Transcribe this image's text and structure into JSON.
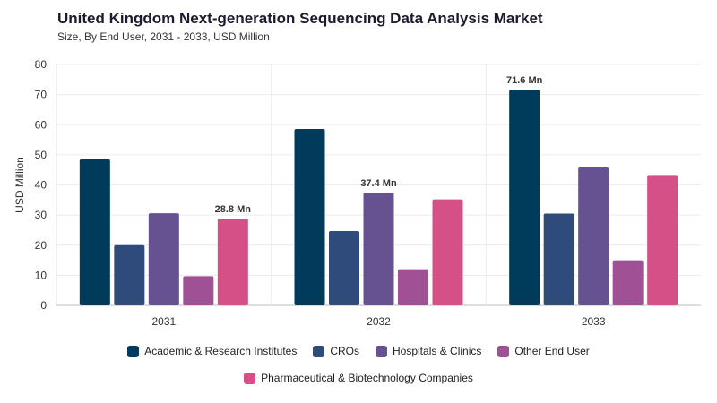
{
  "header": {
    "title": "United Kingdom Next-generation Sequencing Data Analysis Market",
    "subtitle": "Size, By End User, 2031 - 2033, USD Million"
  },
  "chart_data": {
    "type": "bar",
    "categories": [
      "2031",
      "2032",
      "2033"
    ],
    "ylabel": "USD Million",
    "ylim": [
      0,
      80
    ],
    "yticks": [
      "0",
      "10",
      "20",
      "30",
      "40",
      "50",
      "60",
      "70",
      "80"
    ],
    "grid": true,
    "legend_position": "bottom",
    "series": [
      {
        "name": "Academic & Research Institutes",
        "color": "#003b5c",
        "values": [
          48.5,
          58.6,
          71.6
        ]
      },
      {
        "name": "CROs",
        "color": "#2f4b7c",
        "values": [
          20.0,
          24.7,
          30.5
        ]
      },
      {
        "name": "Hospitals & Clinics",
        "color": "#665191",
        "values": [
          30.6,
          37.4,
          45.8
        ]
      },
      {
        "name": "Other End User",
        "color": "#a05195",
        "values": [
          9.7,
          12.0,
          15.0
        ]
      },
      {
        "name": "Pharmaceutical & Biotechnology Companies",
        "color": "#d45087",
        "values": [
          28.8,
          35.2,
          43.3
        ]
      }
    ],
    "annotations": [
      {
        "category": "2031",
        "series": "Pharmaceutical & Biotechnology Companies",
        "text": "28.8 Mn"
      },
      {
        "category": "2032",
        "series": "Hospitals & Clinics",
        "text": "37.4 Mn"
      },
      {
        "category": "2033",
        "series": "Academic & Research Institutes",
        "text": "71.6 Mn"
      }
    ]
  }
}
